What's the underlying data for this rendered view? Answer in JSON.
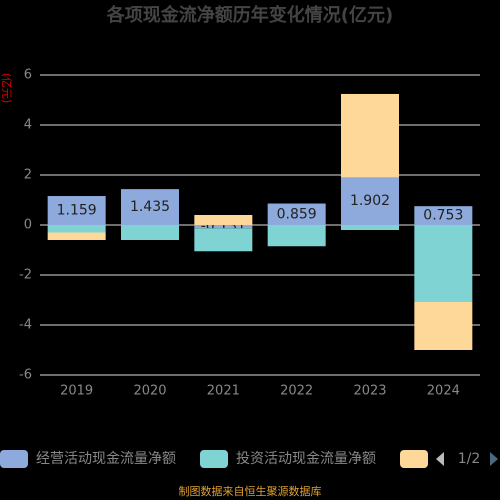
{
  "chart_data": {
    "type": "stacked_bar",
    "title": "各项现金流净额历年变化情况(亿元)",
    "y_label": "(亿元)",
    "categories": [
      "2019",
      "2020",
      "2021",
      "2022",
      "2023",
      "2024"
    ],
    "series": [
      {
        "name": "经营活动现金流量净额",
        "color": "#8eaadc",
        "show_labels": true,
        "values": [
          1.159,
          1.435,
          -0.131,
          0.859,
          1.902,
          0.753
        ]
      },
      {
        "name": "投资活动现金流量净额",
        "color": "#7fd3d3",
        "values": [
          -0.3,
          -0.6,
          -0.92,
          -0.85,
          -0.2,
          -3.08
        ]
      },
      {
        "color": "#fdd898",
        "values": [
          -0.3,
          0.0,
          0.4,
          0.0,
          3.34,
          -1.92
        ]
      }
    ],
    "ylim": [
      -6,
      6
    ],
    "yticks": [
      -6,
      -4,
      -2,
      0,
      2,
      4,
      6
    ],
    "grid": true,
    "legend_page": "1/2",
    "source": "制图数据来自恒生聚源数据库"
  }
}
